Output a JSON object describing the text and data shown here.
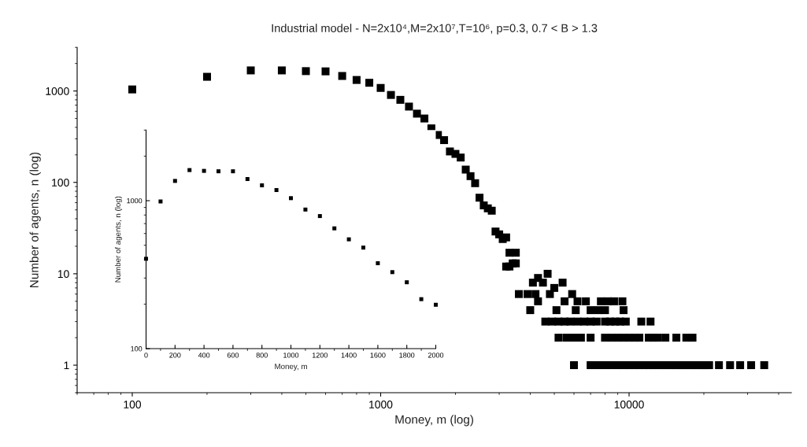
{
  "chart_data": [
    {
      "type": "scatter",
      "title": "Industrial model - N=2x10⁴,M=2x10⁷,T=10⁶, p=0.3, 0.7 < B > 1.3",
      "xlabel": "Money, m (log)",
      "ylabel": "Number of agents, n (log)",
      "log": "xy",
      "marker": "square",
      "color": "#000000",
      "x": [
        100,
        200,
        300,
        400,
        500,
        600,
        700,
        800,
        900,
        1000,
        1100,
        1200,
        1300,
        1400,
        1500,
        1600,
        1700,
        1800,
        1900,
        2000,
        2100,
        2200,
        2300,
        2400,
        2500,
        2600,
        2700,
        2800,
        2900,
        3000,
        3100,
        3200,
        3200,
        3300,
        3400,
        3500,
        3300,
        3500,
        3600,
        3900,
        4200,
        4800,
        5900,
        4700,
        4300,
        4100,
        4500,
        5400,
        5000,
        4300,
        5500,
        6200,
        6700,
        7700,
        8200,
        8700,
        9400,
        4000,
        5100,
        6100,
        7000,
        7500,
        8000,
        9500,
        4600,
        4900,
        5200,
        5500,
        5800,
        6200,
        6600,
        7000,
        7400,
        8000,
        8400,
        8800,
        9200,
        9700,
        11200,
        12200,
        5200,
        5600,
        6000,
        6400,
        7000,
        8000,
        8500,
        9000,
        9500,
        10000,
        10500,
        11000,
        12000,
        12500,
        13000,
        14000,
        15500,
        17000,
        18000,
        6000,
        7000,
        7500,
        8000,
        8500,
        9000,
        9500,
        10000,
        10500,
        11000,
        11500,
        12000,
        12500,
        13000,
        13500,
        14000,
        14500,
        15000,
        15500,
        16000,
        16500,
        17000,
        17500,
        18000,
        18500,
        19000,
        19500,
        20000,
        20500,
        21000,
        23000,
        25500,
        28000,
        31000,
        35000
      ],
      "values": [
        1040,
        1430,
        1680,
        1680,
        1650,
        1640,
        1460,
        1320,
        1230,
        1080,
        905,
        800,
        675,
        565,
        500,
        390,
        330,
        290,
        218,
        205,
        187,
        138,
        117,
        98,
        68,
        56,
        52,
        49,
        29,
        27,
        24,
        25,
        12,
        12,
        13,
        13,
        17,
        17,
        6,
        6,
        6,
        6,
        6,
        10,
        9,
        8,
        8,
        8,
        7,
        5,
        5,
        5,
        5,
        5,
        5,
        5,
        5,
        4,
        4,
        4,
        4,
        4,
        4,
        4,
        3,
        3,
        3,
        3,
        3,
        3,
        3,
        3,
        3,
        3,
        3,
        3,
        3,
        3,
        3,
        3,
        2,
        2,
        2,
        2,
        2,
        2,
        2,
        2,
        2,
        2,
        2,
        2,
        2,
        2,
        2,
        2,
        2,
        2,
        2,
        1,
        1,
        1,
        1,
        1,
        1,
        1,
        1,
        1,
        1,
        1,
        1,
        1,
        1,
        1,
        1,
        1,
        1,
        1,
        1,
        1,
        1,
        1,
        1,
        1,
        1,
        1,
        1,
        1,
        1,
        1,
        1,
        1,
        1,
        1
      ],
      "xlim": [
        60,
        45000
      ],
      "ylim": [
        0.5,
        3000
      ],
      "xticks": [
        100,
        1000,
        10000
      ],
      "yticks": [
        1,
        10,
        100,
        1000
      ]
    },
    {
      "type": "scatter",
      "xlabel": "Money, m",
      "ylabel": "Number of agents, n (log)",
      "log": "y",
      "marker": "square",
      "color": "#000000",
      "x": [
        0,
        100,
        200,
        300,
        400,
        500,
        600,
        700,
        800,
        900,
        1000,
        1100,
        1200,
        1300,
        1400,
        1500,
        1600,
        1700,
        1800,
        1900,
        2000
      ],
      "values": [
        405,
        988,
        1360,
        1610,
        1590,
        1580,
        1580,
        1400,
        1270,
        1180,
        1040,
        871,
        787,
        650,
        548,
        482,
        378,
        329,
        281,
        216,
        198
      ],
      "xlim": [
        0,
        2000
      ],
      "ylim": [
        100,
        3000
      ],
      "xticks": [
        0,
        200,
        400,
        600,
        800,
        1000,
        1200,
        1400,
        1600,
        1800,
        2000
      ],
      "yticks": [
        100,
        1000
      ]
    }
  ]
}
